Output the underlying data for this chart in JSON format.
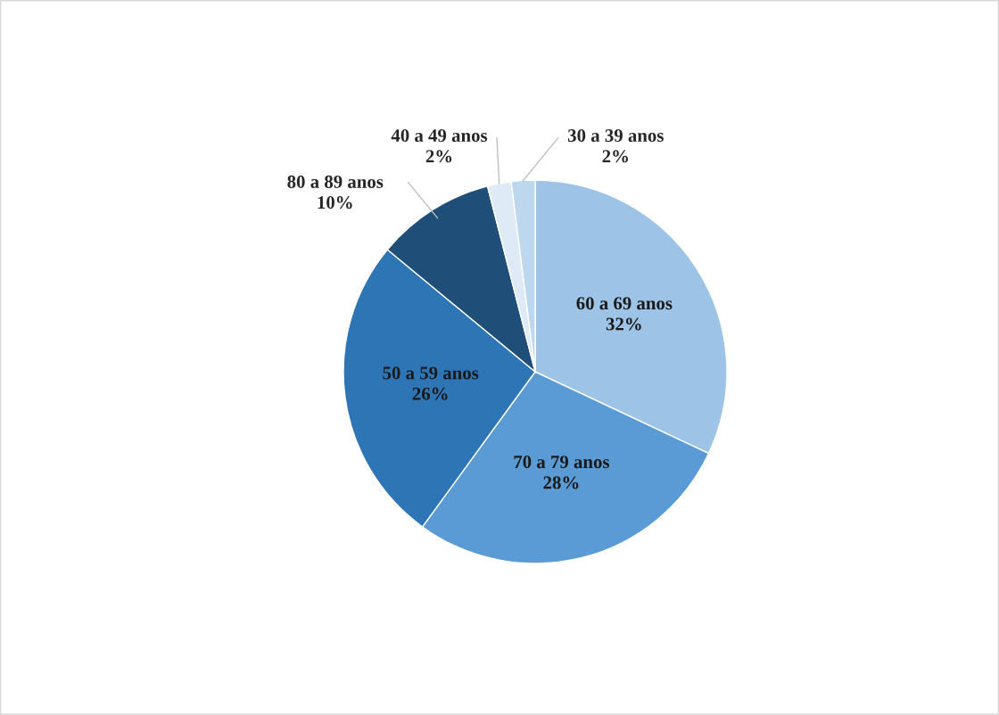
{
  "chart_data": {
    "type": "pie",
    "categories": [
      "60 a 69 anos",
      "70 a 79 anos",
      "50 a 59 anos",
      "80 a 89 anos",
      "40 a 49 anos",
      "30 a 39 anos"
    ],
    "values": [
      32,
      28,
      26,
      10,
      2,
      2
    ],
    "value_labels": [
      "32%",
      "28%",
      "26%",
      "10%",
      "2%",
      "2%"
    ],
    "colors": [
      "#9dc3e6",
      "#5b9bd5",
      "#2e75b6",
      "#1f4e79",
      "#deebf7",
      "#bdd7ee"
    ]
  }
}
